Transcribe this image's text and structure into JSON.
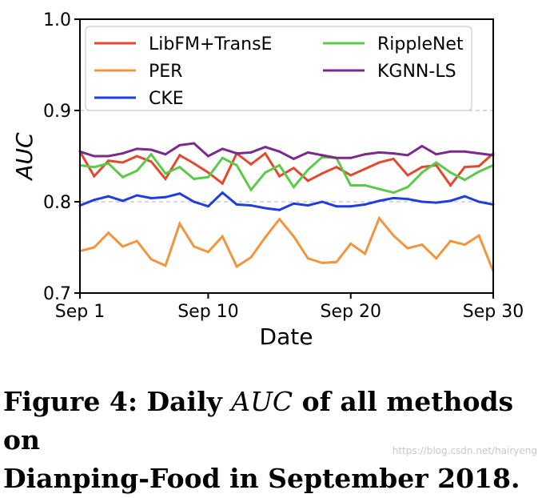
{
  "chart_data": {
    "type": "line",
    "title": "",
    "xlabel": "Date",
    "ylabel": "AUC",
    "xlim": [
      1,
      30
    ],
    "ylim": [
      0.7,
      1.0
    ],
    "x": [
      1,
      2,
      3,
      4,
      5,
      6,
      7,
      8,
      9,
      10,
      11,
      12,
      13,
      14,
      15,
      16,
      17,
      18,
      19,
      20,
      21,
      22,
      23,
      24,
      25,
      26,
      27,
      28,
      29,
      30
    ],
    "xticks": [
      {
        "value": 1,
        "label": "Sep 1"
      },
      {
        "value": 10,
        "label": "Sep 10"
      },
      {
        "value": 20,
        "label": "Sep 20"
      },
      {
        "value": 30,
        "label": "Sep 30"
      }
    ],
    "yticks": [
      {
        "value": 0.7,
        "label": "0.7"
      },
      {
        "value": 0.8,
        "label": "0.8"
      },
      {
        "value": 0.9,
        "label": "0.9"
      },
      {
        "value": 1.0,
        "label": "1.0"
      }
    ],
    "dashed_gridlines": [
      0.8,
      0.9
    ],
    "legend_position": "top",
    "series": [
      {
        "name": "LibFM+TransE",
        "color": "#e04a2f",
        "values": [
          0.855,
          0.828,
          0.845,
          0.843,
          0.85,
          0.844,
          0.825,
          0.851,
          0.842,
          0.832,
          0.82,
          0.853,
          0.841,
          0.853,
          0.828,
          0.837,
          0.823,
          0.831,
          0.838,
          0.829,
          0.836,
          0.843,
          0.847,
          0.829,
          0.838,
          0.84,
          0.818,
          0.838,
          0.839,
          0.853
        ]
      },
      {
        "name": "PER",
        "color": "#f0963c",
        "values": [
          0.746,
          0.75,
          0.766,
          0.751,
          0.757,
          0.737,
          0.73,
          0.776,
          0.751,
          0.745,
          0.762,
          0.729,
          0.739,
          0.761,
          0.781,
          0.762,
          0.738,
          0.733,
          0.734,
          0.754,
          0.743,
          0.782,
          0.763,
          0.749,
          0.753,
          0.738,
          0.757,
          0.753,
          0.763,
          0.724
        ]
      },
      {
        "name": "CKE",
        "color": "#1f3ee0",
        "values": [
          0.796,
          0.802,
          0.806,
          0.801,
          0.807,
          0.804,
          0.805,
          0.809,
          0.8,
          0.795,
          0.81,
          0.797,
          0.796,
          0.793,
          0.791,
          0.798,
          0.796,
          0.8,
          0.795,
          0.795,
          0.797,
          0.801,
          0.804,
          0.803,
          0.8,
          0.799,
          0.801,
          0.806,
          0.8,
          0.797
        ]
      },
      {
        "name": "RippleNet",
        "color": "#5cc94a",
        "values": [
          0.84,
          0.838,
          0.842,
          0.827,
          0.834,
          0.852,
          0.831,
          0.838,
          0.825,
          0.827,
          0.848,
          0.84,
          0.813,
          0.832,
          0.84,
          0.816,
          0.835,
          0.849,
          0.848,
          0.818,
          0.818,
          0.814,
          0.81,
          0.816,
          0.832,
          0.843,
          0.832,
          0.824,
          0.833,
          0.84
        ]
      },
      {
        "name": "KGNN-LS",
        "color": "#7a2a8a",
        "values": [
          0.855,
          0.85,
          0.85,
          0.853,
          0.858,
          0.857,
          0.852,
          0.862,
          0.864,
          0.85,
          0.858,
          0.853,
          0.854,
          0.86,
          0.855,
          0.847,
          0.854,
          0.851,
          0.848,
          0.848,
          0.852,
          0.854,
          0.853,
          0.851,
          0.861,
          0.852,
          0.855,
          0.855,
          0.853,
          0.851
        ]
      }
    ]
  },
  "caption": {
    "prefix": "Figure 4: Daily ",
    "italic": "AUC",
    "line1_end": " of all methods on",
    "line2": "Dianping-Food in September 2018."
  },
  "watermark": "https://blog.csdn.net/hairyeng"
}
